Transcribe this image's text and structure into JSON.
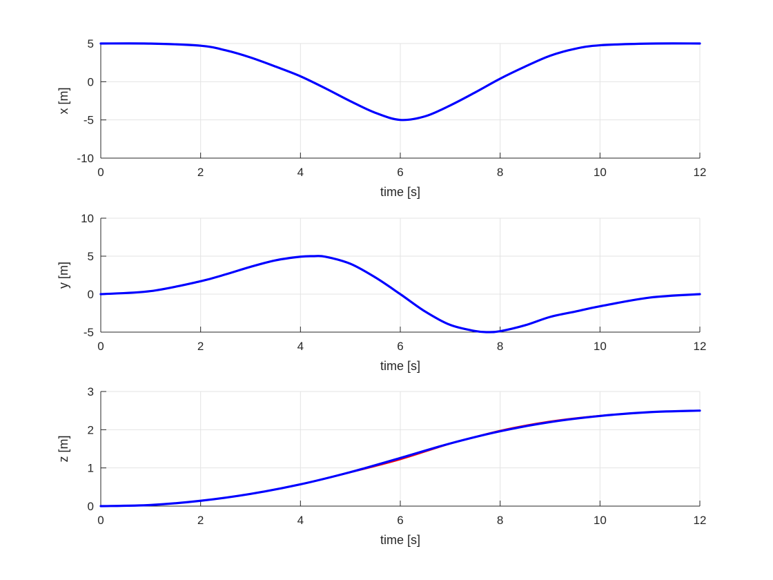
{
  "chart_data": [
    {
      "type": "line",
      "xlabel": "time [s]",
      "ylabel": "x [m]",
      "xlim": [
        0,
        12
      ],
      "ylim": [
        -10,
        5
      ],
      "xticks": [
        0,
        2,
        4,
        6,
        8,
        10,
        12
      ],
      "yticks": [
        -10,
        -5,
        0,
        5
      ],
      "grid": true,
      "legend": "none",
      "series": [
        {
          "color": "#ff0000",
          "x": [
            0,
            1,
            2,
            2.5,
            3,
            3.5,
            4,
            4.5,
            5,
            5.5,
            6,
            6.5,
            7,
            7.5,
            8,
            8.5,
            9,
            9.5,
            10,
            11,
            12
          ],
          "y": [
            5,
            4.99,
            4.71,
            4.11,
            3.17,
            1.98,
            0.71,
            -0.87,
            -2.55,
            -4.07,
            -5,
            -4.52,
            -3.1,
            -1.4,
            0.4,
            1.98,
            3.4,
            4.31,
            4.77,
            4.99,
            5
          ]
        },
        {
          "color": "#0000ff",
          "x": [
            0,
            1,
            2,
            2.5,
            3,
            3.5,
            4,
            4.5,
            5,
            5.5,
            6,
            6.5,
            7,
            7.5,
            8,
            8.5,
            9,
            9.5,
            10,
            11,
            12
          ],
          "y": [
            5,
            4.99,
            4.71,
            4.11,
            3.17,
            1.98,
            0.71,
            -0.87,
            -2.55,
            -4.07,
            -5,
            -4.52,
            -3.1,
            -1.4,
            0.4,
            1.98,
            3.4,
            4.31,
            4.77,
            4.99,
            5
          ]
        }
      ]
    },
    {
      "type": "line",
      "xlabel": "time [s]",
      "ylabel": "y [m]",
      "xlim": [
        0,
        12
      ],
      "ylim": [
        -5,
        10
      ],
      "xticks": [
        0,
        2,
        4,
        6,
        8,
        10,
        12
      ],
      "yticks": [
        -5,
        0,
        5,
        10
      ],
      "grid": true,
      "legend": "none",
      "series": [
        {
          "color": "#ff0000",
          "x": [
            0,
            1,
            2,
            2.5,
            3,
            3.5,
            4,
            4.25,
            4.5,
            5,
            5.5,
            6,
            6.5,
            7,
            7.5,
            7.75,
            8,
            8.5,
            9,
            9.5,
            10,
            11,
            12
          ],
          "y": [
            0,
            0.4,
            1.7,
            2.6,
            3.6,
            4.45,
            4.93,
            5,
            4.93,
            4.0,
            2.2,
            0,
            -2.3,
            -4.05,
            -4.86,
            -5,
            -4.88,
            -4.1,
            -3.0,
            -2.3,
            -1.6,
            -0.45,
            0
          ]
        },
        {
          "color": "#0000ff",
          "x": [
            0,
            1,
            2,
            2.5,
            3,
            3.5,
            4,
            4.25,
            4.5,
            5,
            5.5,
            6,
            6.5,
            7,
            7.5,
            7.75,
            8,
            8.5,
            9,
            9.5,
            10,
            11,
            12
          ],
          "y": [
            0,
            0.4,
            1.7,
            2.6,
            3.6,
            4.45,
            4.93,
            5,
            4.93,
            4.0,
            2.2,
            0,
            -2.3,
            -4.05,
            -4.86,
            -5,
            -4.88,
            -4.1,
            -3.0,
            -2.3,
            -1.6,
            -0.45,
            0
          ]
        }
      ]
    },
    {
      "type": "line",
      "xlabel": "time [s]",
      "ylabel": "z [m]",
      "xlim": [
        0,
        12
      ],
      "ylim": [
        0,
        3
      ],
      "xticks": [
        0,
        2,
        4,
        6,
        8,
        10,
        12
      ],
      "yticks": [
        0,
        1,
        2,
        3
      ],
      "grid": true,
      "legend": "none",
      "series": [
        {
          "color": "#ff0000",
          "x": [
            0,
            1,
            2,
            3,
            4,
            5,
            6,
            7,
            8,
            9,
            10,
            11,
            12
          ],
          "y": [
            0,
            0.03,
            0.14,
            0.32,
            0.57,
            0.88,
            1.22,
            1.63,
            1.98,
            2.22,
            2.37,
            2.46,
            2.5
          ]
        },
        {
          "color": "#0000ff",
          "x": [
            0,
            1,
            2,
            3,
            4,
            5,
            6,
            7,
            8,
            9,
            10,
            11,
            12
          ],
          "y": [
            0,
            0.03,
            0.14,
            0.32,
            0.57,
            0.89,
            1.26,
            1.64,
            1.96,
            2.2,
            2.36,
            2.46,
            2.5
          ]
        }
      ]
    }
  ]
}
